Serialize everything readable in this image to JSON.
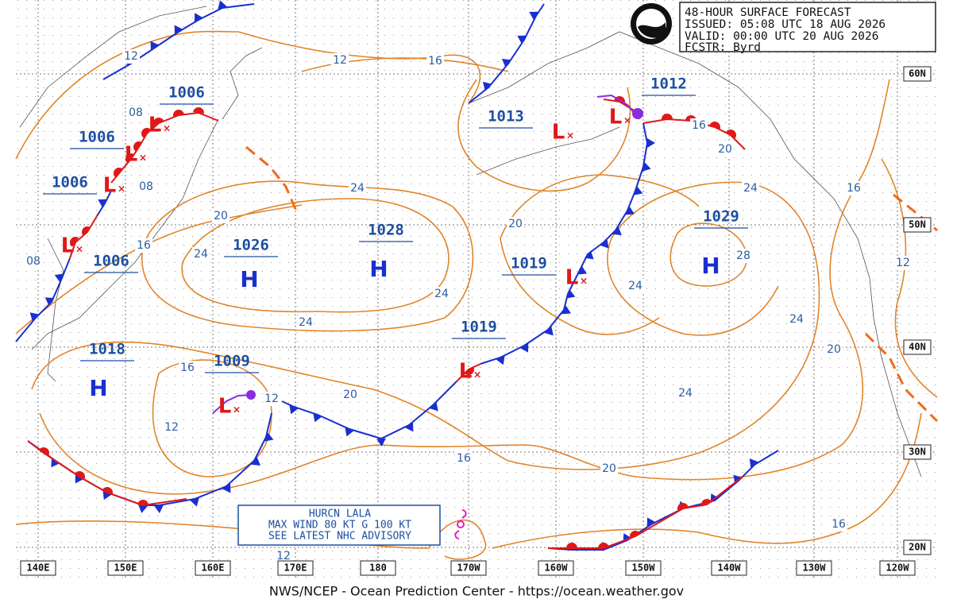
{
  "header": {
    "lines": [
      "48-HOUR SURFACE FORECAST",
      "ISSUED: 05:08 UTC 18 AUG 2026",
      "VALID:  00:00 UTC 20 AUG 2026",
      "FCSTR:  Byrd"
    ]
  },
  "pressure_centers": [
    {
      "symbol": "L",
      "value": "1006"
    },
    {
      "symbol": "L",
      "value": "1006"
    },
    {
      "symbol": "L",
      "value": "1006"
    },
    {
      "symbol": "L",
      "value": "1006"
    },
    {
      "symbol": "L",
      "value": "1013"
    },
    {
      "symbol": "L",
      "value": "1012"
    },
    {
      "symbol": "H",
      "value": "1028"
    },
    {
      "symbol": "H",
      "value": "1026"
    },
    {
      "symbol": "H",
      "value": "1029"
    },
    {
      "symbol": "L",
      "value": "1019"
    },
    {
      "symbol": "L",
      "value": "1019"
    },
    {
      "symbol": "H",
      "value": "1018"
    },
    {
      "symbol": "L",
      "value": "1009"
    }
  ],
  "isobar_labels": [
    "12",
    "12",
    "16",
    "08",
    "08",
    "08",
    "24",
    "20",
    "16",
    "24",
    "20",
    "24",
    "16",
    "16",
    "20",
    "28",
    "24",
    "24",
    "24",
    "24",
    "20",
    "16",
    "12",
    "20",
    "24",
    "12",
    "16",
    "20",
    "16",
    "12",
    "12"
  ],
  "longitude_labels": [
    "140E",
    "150E",
    "160E",
    "170E",
    "180",
    "170W",
    "160W",
    "150W",
    "140W",
    "130W",
    "120W"
  ],
  "latitude_labels": [
    "60N",
    "50N",
    "40N",
    "30N",
    "20N"
  ],
  "hurricane": {
    "lines": [
      "HURCN LALA",
      "MAX WIND 80 KT G 100 KT",
      "SEE LATEST NHC ADVISORY"
    ]
  },
  "footer": "NWS/NCEP - Ocean Prediction Center - https://ocean.weather.gov"
}
